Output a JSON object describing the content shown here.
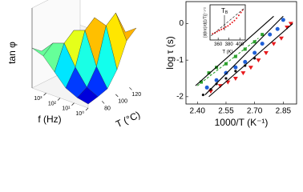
{
  "chart_data": [
    {
      "type": "surface",
      "zlabel": "tan φ",
      "xlabel": "f (Hz)",
      "ylabel": "T (°C)",
      "x": [
        1,
        6,
        40,
        250,
        1600,
        10000
      ],
      "xscale": "log",
      "xlim": [
        1,
        10000
      ],
      "xticks": [
        {
          "value": 1,
          "label": "10⁰"
        },
        {
          "value": 10,
          "label": "10¹"
        },
        {
          "value": 100,
          "label": "10²"
        },
        {
          "value": 1000,
          "label": "10³"
        }
      ],
      "y": [
        60,
        74,
        88,
        102,
        116,
        130
      ],
      "ylim": [
        60,
        130
      ],
      "yticks": [
        80,
        100,
        120
      ],
      "zlim": [
        0,
        1
      ],
      "z": [
        [
          0.05,
          0.08,
          0.15,
          0.3,
          0.45,
          0.5
        ],
        [
          0.08,
          0.15,
          0.35,
          0.6,
          0.55,
          0.4
        ],
        [
          0.12,
          0.35,
          0.75,
          0.7,
          0.45,
          0.3
        ],
        [
          0.3,
          0.8,
          0.85,
          0.5,
          0.3,
          0.2
        ],
        [
          0.6,
          0.9,
          0.6,
          0.35,
          0.2,
          0.12
        ],
        [
          0.7,
          0.6,
          0.4,
          0.25,
          0.12,
          0.08
        ]
      ]
    },
    {
      "type": "scatter",
      "xlabel": "1000/T (K⁻¹)",
      "ylabel": "log τ (s)",
      "xlim": [
        2.34,
        2.92
      ],
      "xticks": [
        {
          "value": 2.4,
          "label": "2.40"
        },
        2.55,
        {
          "value": 2.7,
          "label": "2.70"
        },
        2.85
      ],
      "ylim": [
        -2.2,
        0.6
      ],
      "yticks": [
        -2,
        -1,
        0
      ],
      "series": [
        {
          "color": "#e8191c",
          "marker": "triangle-down",
          "x": [
            2.47,
            2.52,
            2.56,
            2.6,
            2.64,
            2.68,
            2.72,
            2.76,
            2.8,
            2.84,
            2.87,
            2.89
          ],
          "values": [
            -1.85,
            -1.7,
            -1.6,
            -1.5,
            -1.35,
            -1.2,
            -1.0,
            -0.8,
            -0.55,
            -0.4,
            -0.1,
            0.0
          ]
        },
        {
          "color": "#1f5fd6",
          "marker": "circle",
          "x": [
            2.45,
            2.5,
            2.55,
            2.6,
            2.65,
            2.7,
            2.74,
            2.78,
            2.82,
            2.85
          ],
          "values": [
            -1.75,
            -1.55,
            -1.35,
            -1.2,
            -1.05,
            -0.8,
            -0.55,
            -0.3,
            -0.15,
            0.1
          ]
        },
        {
          "color": "#2ca02c",
          "marker": "square",
          "x": [
            2.42,
            2.46,
            2.5,
            2.55,
            2.6,
            2.65,
            2.7,
            2.74
          ],
          "values": [
            -1.6,
            -1.35,
            -1.2,
            -1.1,
            -0.9,
            -0.7,
            -0.5,
            -0.3
          ]
        },
        {
          "color": "#111111",
          "marker": "dot",
          "x": [
            2.43,
            2.47,
            2.5,
            2.55,
            2.6,
            2.65,
            2.7
          ],
          "values": [
            -1.95,
            -1.8,
            -1.65,
            -1.5,
            -1.3,
            -1.15,
            -0.95
          ]
        },
        {
          "color": "#000000",
          "line": true,
          "x": [
            2.39,
            2.8
          ],
          "values": [
            -1.7,
            0.2
          ]
        },
        {
          "color": "#000000",
          "line": true,
          "x": [
            2.44,
            2.85
          ],
          "values": [
            -1.95,
            0.2
          ]
        },
        {
          "color": "#000000",
          "line": true,
          "x": [
            2.46,
            2.9
          ],
          "values": [
            -2.0,
            0.0
          ]
        },
        {
          "color": "#2ca02c",
          "line": true,
          "dash": true,
          "x": [
            2.4,
            2.72
          ],
          "values": [
            -1.7,
            -0.4
          ]
        }
      ]
    },
    {
      "type": "scatter",
      "xlabel": "T (K)",
      "ylabel": "[d(lnτ)/d(1/T)]⁻¹ᐟ²",
      "annotation": "T",
      "annotation_sub": "B",
      "xlim": [
        345,
        410
      ],
      "xticks": [
        360,
        380,
        400
      ],
      "ylim": [
        0,
        1
      ],
      "series": [
        {
          "color": "#e8191c",
          "marker": "dot",
          "x": [
            350,
            354,
            358,
            362,
            366,
            370,
            374,
            378,
            382,
            386,
            390,
            394,
            398,
            402,
            405
          ],
          "values": [
            0.18,
            0.2,
            0.24,
            0.27,
            0.3,
            0.33,
            0.37,
            0.4,
            0.45,
            0.5,
            0.55,
            0.62,
            0.7,
            0.78,
            0.85
          ]
        },
        {
          "color": "#000000",
          "line": true,
          "dash": true,
          "x": [
            347,
            408
          ],
          "values": [
            0.12,
            0.9
          ]
        }
      ]
    }
  ]
}
